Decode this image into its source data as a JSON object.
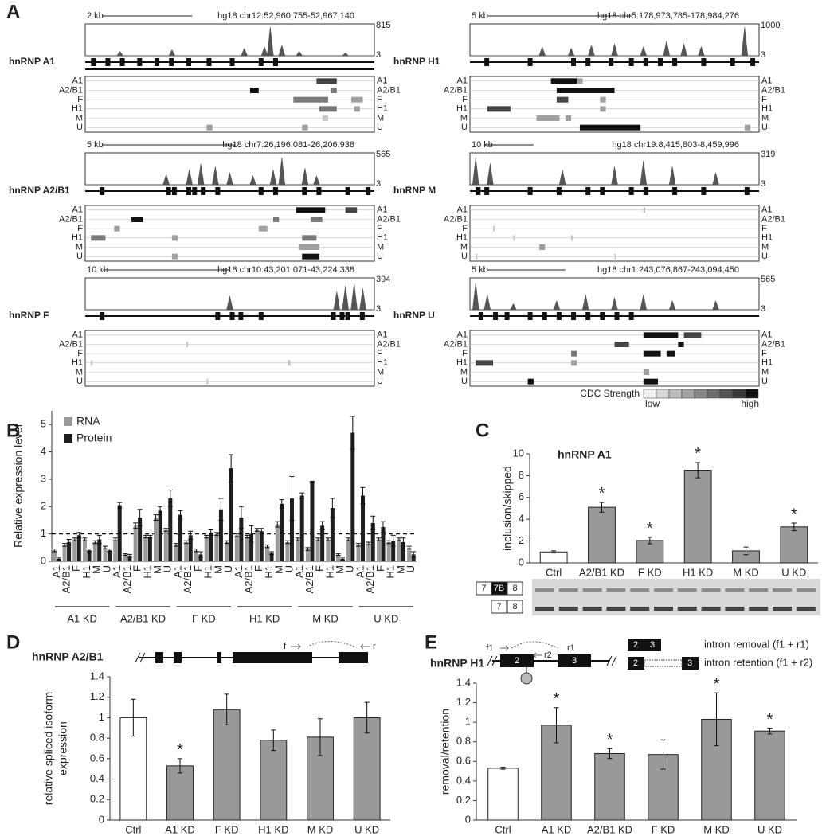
{
  "panel_labels": [
    "A",
    "B",
    "C",
    "D",
    "E"
  ],
  "panel_a": {
    "rows": [
      "A1",
      "A2/B1",
      "F",
      "H1",
      "M",
      "U"
    ],
    "genes": [
      {
        "name": "hnRNP A1",
        "scale": "2 kb",
        "coords": "hg18 chr12:52,960,755-52,967,140",
        "ymax": 815,
        "ymin": 3
      },
      {
        "name": "hnRNP A2/B1",
        "scale": "5 kb",
        "coords": "hg18 chr7:26,196,081-26,206,938",
        "ymax": 565,
        "ymin": 3
      },
      {
        "name": "hnRNP F",
        "scale": "10 kb",
        "coords": "hg18 chr10:43,201,071-43,224,338",
        "ymax": 394,
        "ymin": 3
      },
      {
        "name": "hnRNP H1",
        "scale": "5 kb",
        "coords": "hg18 chr5:178,973,785-178,984,276",
        "ymax": 1000,
        "ymin": 3
      },
      {
        "name": "hnRNP M",
        "scale": "10 kb",
        "coords": "hg18 chr19:8,415,803-8,459,996",
        "ymax": 319,
        "ymin": 3
      },
      {
        "name": "hnRNP U",
        "scale": "5 kb",
        "coords": "hg18 chr1:243,076,867-243,094,450",
        "ymax": 565,
        "ymin": 3
      }
    ],
    "cdc_legend": {
      "title": "CDC Strength",
      "low": "low",
      "high": "high"
    }
  },
  "chart_data": [
    {
      "type": "grouped_bar",
      "ylabel": "Relative expression level",
      "groups": [
        "A1 KD",
        "A2/B1 KD",
        "F KD",
        "H1 KD",
        "M KD",
        "U KD"
      ],
      "categories": [
        "A1",
        "A2/B1",
        "F",
        "H1",
        "M",
        "U",
        "A1",
        "A2/B1",
        "F",
        "H1",
        "M",
        "U",
        "A1",
        "A2/B1",
        "F",
        "H1",
        "M",
        "U",
        "A1",
        "A2/B1",
        "F",
        "H1",
        "M",
        "U",
        "A1",
        "A2/B1",
        "F",
        "H1",
        "M",
        "U",
        "A1",
        "A2/B1",
        "F",
        "H1",
        "M",
        "U"
      ],
      "series": [
        {
          "name": "RNA",
          "color": "#9a9a9a",
          "values": [
            0.4,
            0.6,
            0.8,
            0.8,
            0.7,
            0.5,
            0.8,
            0.25,
            1.3,
            0.9,
            1.6,
            1.15,
            0.6,
            0.7,
            0.4,
            0.9,
            1.0,
            0.7,
            0.95,
            0.9,
            1.15,
            0.55,
            1.35,
            0.7,
            0.8,
            0.45,
            0.8,
            0.8,
            0.25,
            0.8,
            0.6,
            0.65,
            0.8,
            0.7,
            0.8,
            0.5
          ],
          "errors": [
            0.05,
            0.05,
            0.05,
            0.05,
            0.05,
            0.05,
            0.05,
            0.03,
            0.1,
            0.05,
            0.1,
            0.05,
            0.05,
            0.05,
            0.05,
            0.05,
            0.05,
            0.05,
            0.05,
            0.05,
            0.05,
            0.05,
            0.1,
            0.05,
            0.05,
            0.05,
            0.05,
            0.05,
            0.03,
            0.05,
            0.05,
            0.05,
            0.05,
            0.05,
            0.05,
            0.05
          ]
        },
        {
          "name": "Protein",
          "color": "#1e1e1e",
          "values": [
            0.1,
            0.7,
            0.95,
            0.4,
            0.8,
            0.4,
            2.05,
            0.2,
            1.6,
            0.9,
            1.85,
            2.3,
            1.7,
            0.95,
            0.25,
            1.05,
            1.9,
            3.4,
            1.6,
            1.0,
            1.1,
            0.3,
            2.1,
            2.3,
            2.4,
            2.9,
            1.3,
            1.95,
            0.1,
            4.7,
            2.4,
            1.4,
            1.25,
            0.75,
            0.7,
            0.25
          ],
          "errors": [
            0.05,
            0.1,
            0.1,
            0.05,
            0.15,
            0.05,
            0.1,
            0.05,
            0.3,
            0.05,
            0.15,
            0.3,
            0.15,
            0.15,
            0.1,
            0.1,
            0.4,
            0.5,
            0.4,
            0.3,
            0.1,
            0.05,
            0.15,
            0.8,
            0.1,
            0.03,
            0.15,
            0.35,
            0.05,
            0.6,
            0.3,
            0.25,
            0.2,
            0.2,
            0.15,
            0.1
          ]
        }
      ],
      "ylim": [
        0,
        5.5
      ],
      "yticks": [
        0,
        1,
        2,
        3,
        4,
        5
      ],
      "reference_line": 1
    },
    {
      "type": "bar",
      "title": "hnRNP A1",
      "ylabel": [
        "inclusion/skipped"
      ],
      "categories": [
        "Ctrl",
        "A2/B1 KD",
        "F KD",
        "H1 KD",
        "M KD",
        "U KD"
      ],
      "values": [
        1.0,
        5.1,
        2.05,
        8.5,
        1.1,
        3.3
      ],
      "errors": [
        0.1,
        0.45,
        0.3,
        0.7,
        0.35,
        0.35
      ],
      "colors": [
        "#ffffff",
        "#999999",
        "#999999",
        "#999999",
        "#999999",
        "#999999"
      ],
      "marks": [
        null,
        "*",
        "*",
        "*",
        null,
        "*"
      ],
      "ylim": [
        0,
        10
      ],
      "yticks": [
        0,
        2,
        4,
        6,
        8,
        10
      ],
      "gel_labels": [
        "7",
        "7B",
        "8"
      ]
    },
    {
      "type": "bar",
      "title": "hnRNP A2/B1",
      "ylabel": [
        "relative spliced isoform",
        "expression"
      ],
      "categories": [
        "Ctrl",
        "A1 KD",
        "F KD",
        "H1 KD",
        "M KD",
        "U KD"
      ],
      "values": [
        1.0,
        0.53,
        1.08,
        0.78,
        0.81,
        1.0
      ],
      "errors": [
        0.18,
        0.07,
        0.15,
        0.1,
        0.18,
        0.15
      ],
      "colors": [
        "#ffffff",
        "#999999",
        "#999999",
        "#999999",
        "#999999",
        "#999999"
      ],
      "marks": [
        null,
        "*",
        null,
        null,
        null,
        null
      ],
      "ylim": [
        0,
        1.4
      ],
      "yticks": [
        0,
        0.2,
        0.4,
        0.6,
        0.8,
        1,
        1.2,
        1.4
      ],
      "primers": [
        "f",
        "r"
      ]
    },
    {
      "type": "bar",
      "title": "hnRNP H1",
      "ylabel": [
        "removal/retention"
      ],
      "categories": [
        "Ctrl",
        "A1 KD",
        "A2/B1 KD",
        "F KD",
        "M KD",
        "U KD"
      ],
      "values": [
        0.53,
        0.97,
        0.68,
        0.67,
        1.03,
        0.91
      ],
      "errors": [
        0.01,
        0.18,
        0.05,
        0.15,
        0.27,
        0.03
      ],
      "colors": [
        "#ffffff",
        "#999999",
        "#999999",
        "#999999",
        "#999999",
        "#999999"
      ],
      "marks": [
        null,
        "*",
        "*",
        null,
        "*",
        "*"
      ],
      "ylim": [
        0,
        1.4
      ],
      "yticks": [
        0,
        0.2,
        0.4,
        0.6,
        0.8,
        1,
        1.2,
        1.4
      ],
      "primers": [
        "f1",
        "r1",
        "r2"
      ],
      "exons": [
        "2",
        "3"
      ],
      "legend": [
        "intron removal (f1 + r1)",
        "intron retention (f1 + r2)"
      ]
    }
  ]
}
